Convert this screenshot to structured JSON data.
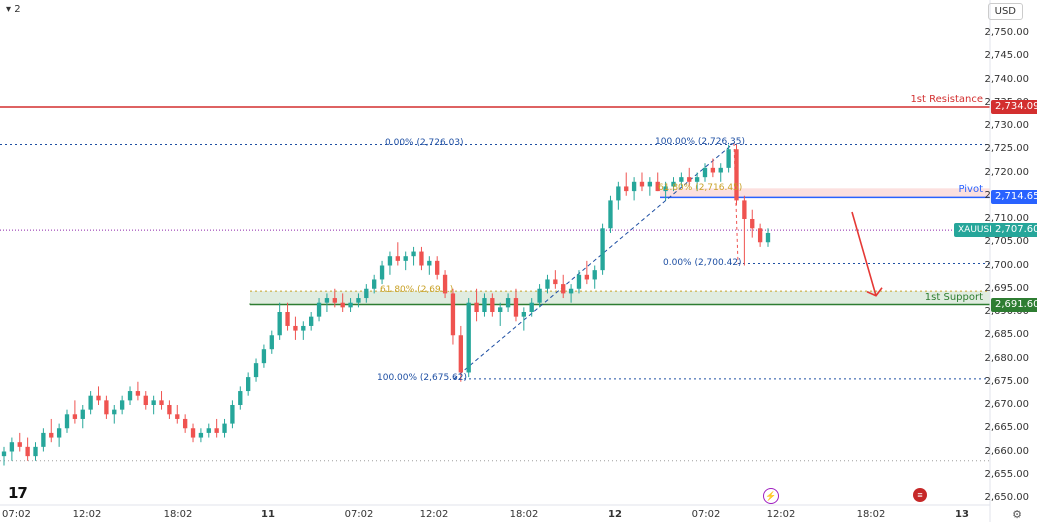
{
  "toolbar": {
    "interval_label": "2",
    "currency_label": "USD"
  },
  "colors": {
    "bull": "#26a69a",
    "bear": "#ef5350",
    "resistance": "#d32f2f",
    "pivot": "#2962ff",
    "support": "#2e7d32",
    "fib": "#1e4fa3",
    "fib_gold": "#c9a227",
    "price_line": "#8e24aa",
    "arrow": "#e53935"
  },
  "chart_data": {
    "type": "candlestick",
    "symbol": "XAUUSD",
    "ylim": [
      2650,
      2755
    ],
    "y_ticks": [
      "2,750.00",
      "2,745.00",
      "2,740.00",
      "2,735.00",
      "2,730.00",
      "2,725.00",
      "2,720.00",
      "2,715.00",
      "2,710.00",
      "2,705.00",
      "2,700.00",
      "2,695.00",
      "2,690.00",
      "2,685.00",
      "2,680.00",
      "2,675.00",
      "2,670.00",
      "2,665.00",
      "2,660.00",
      "2,655.00",
      "2,650.00"
    ],
    "x_ticks": [
      {
        "label": "07:02",
        "bold": false
      },
      {
        "label": "12:02",
        "bold": false
      },
      {
        "label": "18:02",
        "bold": false
      },
      {
        "label": "11",
        "bold": true
      },
      {
        "label": "07:02",
        "bold": false
      },
      {
        "label": "12:02",
        "bold": false
      },
      {
        "label": "18:02",
        "bold": false
      },
      {
        "label": "12",
        "bold": true
      },
      {
        "label": "07:02",
        "bold": false
      },
      {
        "label": "12:02",
        "bold": false
      },
      {
        "label": "18:02",
        "bold": false
      },
      {
        "label": "13",
        "bold": true
      }
    ],
    "levels": {
      "resistance": {
        "label": "1st Resistance",
        "value": 2734.09,
        "badge": "2,734.09"
      },
      "pivot": {
        "label": "Pivot",
        "value": 2714.65,
        "badge": "2,714.65"
      },
      "support": {
        "label": "1st Support",
        "value": 2691.6,
        "badge": "2,691.60"
      },
      "last_price": {
        "label": "XAUUSD",
        "value": 2707.6,
        "badge": "2,707.60"
      }
    },
    "fib_annotations": [
      {
        "text": "0.00% (2,726.03)",
        "value": 2726.03
      },
      {
        "text": "100.00% (2,726.35)",
        "value": 2726.35
      },
      {
        "text": "61.80% (2,716.45)",
        "value": 2716.45
      },
      {
        "text": "0.00% (2,700.42)",
        "value": 2700.42
      },
      {
        "text": "61.80% (2,69…)",
        "value": 2694.5
      },
      {
        "text": "100.00% (2,675.62)",
        "value": 2675.62
      }
    ],
    "candles": [
      [
        2659,
        2661,
        2657,
        2660
      ],
      [
        2660,
        2663,
        2658,
        2662
      ],
      [
        2662,
        2664,
        2660,
        2661
      ],
      [
        2661,
        2663,
        2658,
        2659
      ],
      [
        2659,
        2662,
        2658,
        2661
      ],
      [
        2661,
        2665,
        2660,
        2664
      ],
      [
        2664,
        2667,
        2662,
        2663
      ],
      [
        2663,
        2666,
        2661,
        2665
      ],
      [
        2665,
        2669,
        2664,
        2668
      ],
      [
        2668,
        2671,
        2666,
        2667
      ],
      [
        2667,
        2670,
        2665,
        2669
      ],
      [
        2669,
        2673,
        2668,
        2672
      ],
      [
        2672,
        2674,
        2670,
        2671
      ],
      [
        2671,
        2672,
        2667,
        2668
      ],
      [
        2668,
        2670,
        2666,
        2669
      ],
      [
        2669,
        2672,
        2668,
        2671
      ],
      [
        2671,
        2674,
        2670,
        2673
      ],
      [
        2673,
        2675,
        2671,
        2672
      ],
      [
        2672,
        2673,
        2669,
        2670
      ],
      [
        2670,
        2672,
        2668,
        2671
      ],
      [
        2671,
        2673,
        2669,
        2670
      ],
      [
        2670,
        2671,
        2667,
        2668
      ],
      [
        2668,
        2670,
        2666,
        2667
      ],
      [
        2667,
        2668,
        2664,
        2665
      ],
      [
        2665,
        2666,
        2662,
        2663
      ],
      [
        2663,
        2665,
        2662,
        2664
      ],
      [
        2664,
        2666,
        2663,
        2665
      ],
      [
        2665,
        2667,
        2663,
        2664
      ],
      [
        2664,
        2667,
        2663,
        2666
      ],
      [
        2666,
        2671,
        2665,
        2670
      ],
      [
        2670,
        2674,
        2669,
        2673
      ],
      [
        2673,
        2677,
        2672,
        2676
      ],
      [
        2676,
        2680,
        2675,
        2679
      ],
      [
        2679,
        2683,
        2678,
        2682
      ],
      [
        2682,
        2686,
        2681,
        2685
      ],
      [
        2685,
        2692,
        2684,
        2690
      ],
      [
        2690,
        2692,
        2686,
        2687
      ],
      [
        2687,
        2689,
        2684,
        2686
      ],
      [
        2686,
        2688,
        2684,
        2687
      ],
      [
        2687,
        2690,
        2686,
        2689
      ],
      [
        2689,
        2693,
        2688,
        2692
      ],
      [
        2692,
        2694,
        2690,
        2693
      ],
      [
        2693,
        2695,
        2691,
        2692
      ],
      [
        2692,
        2694,
        2690,
        2691
      ],
      [
        2691,
        2693,
        2690,
        2692
      ],
      [
        2692,
        2694,
        2691,
        2693
      ],
      [
        2693,
        2696,
        2692,
        2695
      ],
      [
        2695,
        2698,
        2694,
        2697
      ],
      [
        2697,
        2701,
        2696,
        2700
      ],
      [
        2700,
        2703,
        2698,
        2702
      ],
      [
        2702,
        2705,
        2700,
        2701
      ],
      [
        2701,
        2703,
        2699,
        2702
      ],
      [
        2702,
        2704,
        2700,
        2703
      ],
      [
        2703,
        2704,
        2699,
        2700
      ],
      [
        2700,
        2702,
        2698,
        2701
      ],
      [
        2701,
        2702,
        2697,
        2698
      ],
      [
        2698,
        2699,
        2693,
        2694
      ],
      [
        2694,
        2695,
        2683,
        2685
      ],
      [
        2685,
        2687,
        2675,
        2677
      ],
      [
        2677,
        2693,
        2676,
        2692
      ],
      [
        2692,
        2695,
        2688,
        2690
      ],
      [
        2690,
        2694,
        2689,
        2693
      ],
      [
        2693,
        2694,
        2689,
        2690
      ],
      [
        2690,
        2692,
        2687,
        2691
      ],
      [
        2691,
        2694,
        2690,
        2693
      ],
      [
        2693,
        2695,
        2688,
        2689
      ],
      [
        2689,
        2691,
        2686,
        2690
      ],
      [
        2690,
        2693,
        2689,
        2692
      ],
      [
        2692,
        2696,
        2691,
        2695
      ],
      [
        2695,
        2698,
        2694,
        2697
      ],
      [
        2697,
        2699,
        2695,
        2696
      ],
      [
        2696,
        2698,
        2693,
        2694
      ],
      [
        2694,
        2696,
        2692,
        2695
      ],
      [
        2695,
        2699,
        2694,
        2698
      ],
      [
        2698,
        2701,
        2696,
        2697
      ],
      [
        2697,
        2700,
        2695,
        2699
      ],
      [
        2699,
        2709,
        2698,
        2708
      ],
      [
        2708,
        2715,
        2707,
        2714
      ],
      [
        2714,
        2718,
        2712,
        2717
      ],
      [
        2717,
        2720,
        2715,
        2716
      ],
      [
        2716,
        2719,
        2714,
        2718
      ],
      [
        2718,
        2720,
        2716,
        2717
      ],
      [
        2717,
        2719,
        2715,
        2718
      ],
      [
        2718,
        2720,
        2716,
        2716
      ],
      [
        2716,
        2718,
        2714,
        2717
      ],
      [
        2717,
        2719,
        2716,
        2718
      ],
      [
        2718,
        2720,
        2717,
        2719
      ],
      [
        2719,
        2721,
        2717,
        2718
      ],
      [
        2718,
        2720,
        2716,
        2719
      ],
      [
        2719,
        2722,
        2718,
        2721
      ],
      [
        2721,
        2723,
        2719,
        2720
      ],
      [
        2720,
        2722,
        2718,
        2721
      ],
      [
        2721,
        2726,
        2720,
        2725
      ],
      [
        2725,
        2726,
        2713,
        2714
      ],
      [
        2714,
        2715,
        2700,
        2710
      ],
      [
        2710,
        2712,
        2706,
        2708
      ],
      [
        2708,
        2709,
        2704,
        2705
      ],
      [
        2705,
        2708,
        2704,
        2707
      ]
    ]
  }
}
